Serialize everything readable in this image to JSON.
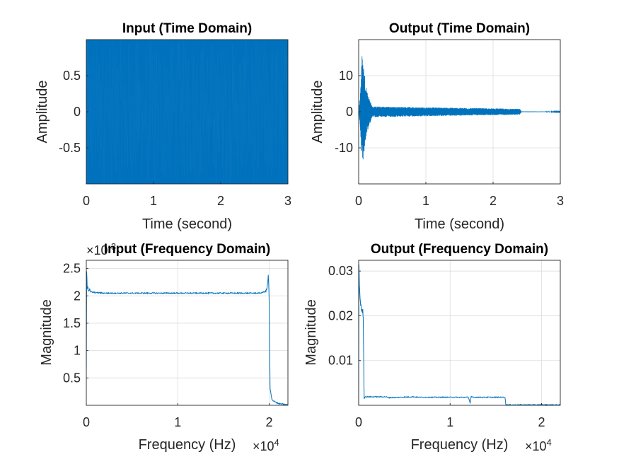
{
  "chart_data": [
    {
      "type": "line",
      "title": "Input (Time Domain)",
      "xlabel": "Time (second)",
      "ylabel": "Amplitude",
      "xlim": [
        0,
        3
      ],
      "ylim": [
        -1,
        1
      ],
      "xticks": [
        0,
        1,
        2,
        3
      ],
      "xtick_labels": [
        "0",
        "1",
        "2",
        "3"
      ],
      "yticks": [
        0.5,
        0,
        -0.5
      ],
      "ytick_labels": [
        "0.5",
        "0",
        "-0.5"
      ],
      "grid": true,
      "color": "#0072BD",
      "signal": "dense noise filling amplitude range -1 to 1 over 0 to 3 s"
    },
    {
      "type": "line",
      "title": "Output (Time Domain)",
      "xlabel": "Time (second)",
      "ylabel": "Amplitude",
      "xlim": [
        0,
        3
      ],
      "ylim": [
        -20,
        20
      ],
      "xticks": [
        0,
        1,
        2,
        3
      ],
      "xtick_labels": [
        "0",
        "1",
        "2",
        "3"
      ],
      "yticks": [
        10,
        0,
        -10
      ],
      "ytick_labels": [
        "10",
        "0",
        "-10"
      ],
      "grid": true,
      "color": "#0072BD",
      "envelope": [
        {
          "x": 0.0,
          "y": 0
        },
        {
          "x": 0.02,
          "y": 4
        },
        {
          "x": 0.05,
          "y": 16
        },
        {
          "x": 0.08,
          "y": 12
        },
        {
          "x": 0.12,
          "y": 6
        },
        {
          "x": 0.2,
          "y": 1.5
        },
        {
          "x": 2.4,
          "y": 0.8
        },
        {
          "x": 2.42,
          "y": 0.1
        },
        {
          "x": 3.0,
          "y": 0.05
        }
      ]
    },
    {
      "type": "line",
      "title": "Input (Frequency Domain)",
      "xlabel": "Frequency (Hz)",
      "ylabel": "Magnitude",
      "xlim": [
        0,
        22050
      ],
      "ylim": [
        0,
        0.00265
      ],
      "xticks": [
        0,
        10000,
        20000
      ],
      "xtick_labels": [
        "0",
        "1",
        "2"
      ],
      "x_exponent": "4",
      "y_exponent": "-3",
      "yticks": [
        0.0005,
        0.001,
        0.0015,
        0.002,
        0.0025
      ],
      "ytick_labels": [
        "0.5",
        "1",
        "1.5",
        "2",
        "2.5"
      ],
      "grid": true,
      "color": "#0072BD",
      "x": [
        0,
        40,
        100,
        250,
        500,
        1000,
        2000,
        5000,
        10000,
        15000,
        19000,
        19600,
        19800,
        19900,
        20000,
        20100,
        20300,
        21000,
        22050
      ],
      "y": [
        0.0006,
        0.0025,
        0.0022,
        0.00212,
        0.00207,
        0.00206,
        0.00205,
        0.00205,
        0.00205,
        0.00205,
        0.00205,
        0.00208,
        0.00215,
        0.0024,
        0.0019,
        0.0003,
        0.0001,
        3e-05,
        1e-05
      ]
    },
    {
      "type": "line",
      "title": "Output (Frequency Domain)",
      "xlabel": "Frequency (Hz)",
      "ylabel": "Magnitude",
      "xlim": [
        0,
        22050
      ],
      "ylim": [
        0,
        0.0324
      ],
      "xticks": [
        0,
        10000,
        20000
      ],
      "xtick_labels": [
        "0",
        "1",
        "2"
      ],
      "x_exponent": "4",
      "yticks": [
        0.01,
        0.02,
        0.03
      ],
      "ytick_labels": [
        "0.01",
        "0.02",
        "0.03"
      ],
      "grid": true,
      "color": "#0072BD",
      "x": [
        0,
        30,
        80,
        150,
        250,
        350,
        450,
        500,
        550,
        600,
        700,
        3000,
        3300,
        6000,
        6500,
        12000,
        12200,
        12300,
        12500,
        16000,
        16100,
        22050
      ],
      "y": [
        0.0,
        0.032,
        0.027,
        0.024,
        0.022,
        0.021,
        0.021,
        0.02,
        0.01,
        0.0015,
        0.0019,
        0.0019,
        0.0017,
        0.0019,
        0.0018,
        0.0018,
        0.0005,
        0.0019,
        0.0018,
        0.0018,
        0.0001,
        0.0001
      ]
    }
  ]
}
